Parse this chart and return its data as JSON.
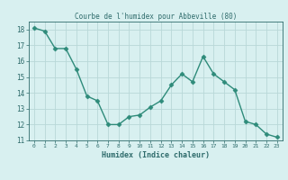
{
  "x": [
    0,
    1,
    2,
    3,
    4,
    5,
    6,
    7,
    8,
    9,
    10,
    11,
    12,
    13,
    14,
    15,
    16,
    17,
    18,
    19,
    20,
    21,
    22,
    23
  ],
  "y": [
    18.1,
    17.9,
    16.8,
    16.8,
    15.5,
    13.8,
    13.5,
    12.0,
    12.0,
    12.5,
    12.6,
    13.1,
    13.5,
    14.5,
    15.2,
    14.7,
    16.3,
    15.2,
    14.7,
    14.2,
    12.2,
    12.0,
    11.4,
    11.2
  ],
  "title": "Courbe de l'humidex pour Abbeville (80)",
  "xlabel": "Humidex (Indice chaleur)",
  "ylim": [
    11,
    18.5
  ],
  "xlim": [
    -0.5,
    23.5
  ],
  "yticks": [
    11,
    12,
    13,
    14,
    15,
    16,
    17,
    18
  ],
  "xticks": [
    0,
    1,
    2,
    3,
    4,
    5,
    6,
    7,
    8,
    9,
    10,
    11,
    12,
    13,
    14,
    15,
    16,
    17,
    18,
    19,
    20,
    21,
    22,
    23
  ],
  "line_color": "#2e8b7a",
  "marker_color": "#2e8b7a",
  "bg_color": "#d8f0f0",
  "grid_color": "#b8d8d8",
  "text_color": "#2e6b6b"
}
